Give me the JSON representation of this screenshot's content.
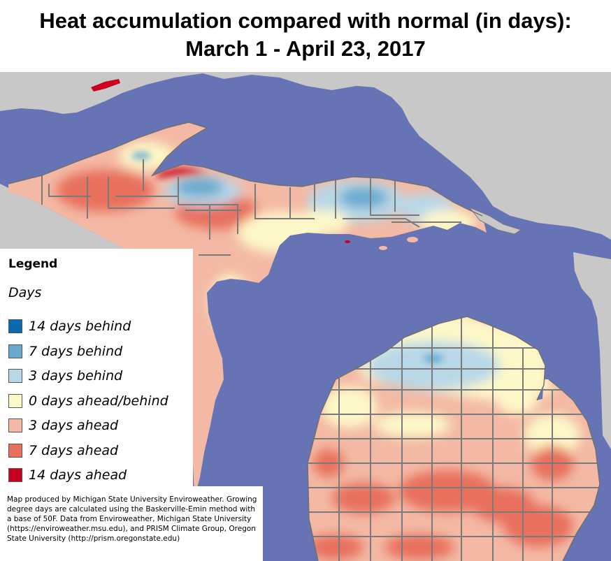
{
  "title": {
    "line1": "Heat accumulation compared with normal (in days):",
    "line2": "March 1 - April 23, 2017"
  },
  "colors": {
    "water": "#6673b4",
    "land_outside": "#c8c8c8",
    "county_lines": "#7a7a7a"
  },
  "legend": {
    "heading": "Legend",
    "subheading": "Days",
    "items": [
      {
        "label": "14 days behind",
        "color": "#0a6ab0"
      },
      {
        "label": "7 days behind",
        "color": "#67a9cf"
      },
      {
        "label": "3 days behind",
        "color": "#b8d8e8"
      },
      {
        "label": "0 days ahead/behind",
        "color": "#fdf8c8"
      },
      {
        "label": "3 days ahead",
        "color": "#f3b9a4"
      },
      {
        "label": "7 days ahead",
        "color": "#e8705d"
      },
      {
        "label": "14 days ahead",
        "color": "#c9001f"
      }
    ]
  },
  "credit": {
    "text": "Map produced by Michigan State University Enviroweather. Growing degree days are calculated using the Baskerville-Emin method with a base of 50F.  Data from Enviroweather, Michigan State University (https://enviroweather.msu.edu), and PRISM Climate Group, Oregon State University (http://prism.oregonstate.edu)"
  }
}
